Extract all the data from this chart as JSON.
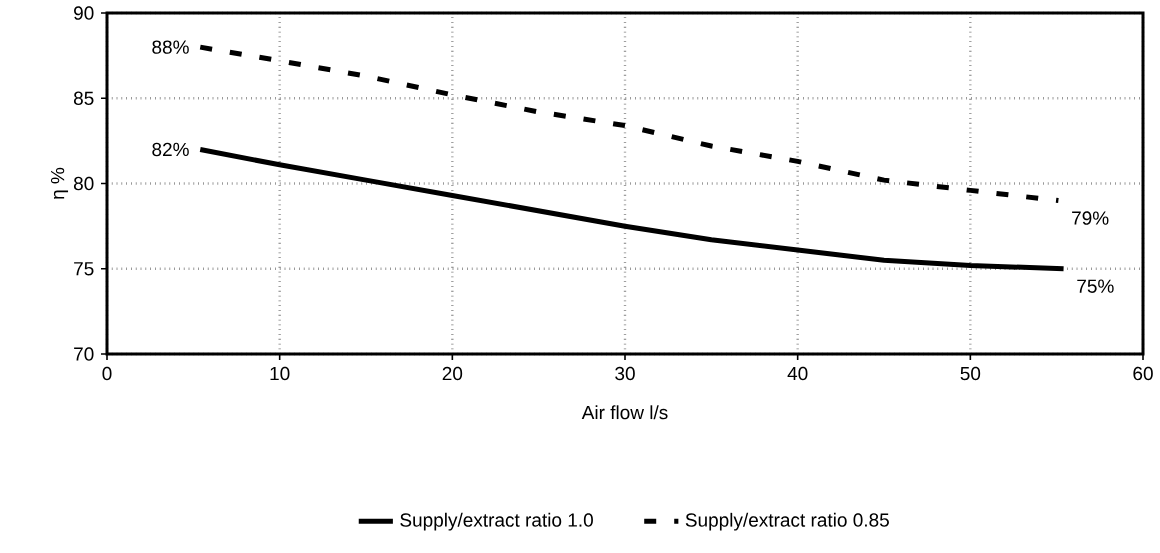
{
  "chart_data": {
    "type": "line",
    "xlabel": "Air flow l/s",
    "ylabel": "η %",
    "xlim": [
      0,
      60
    ],
    "ylim": [
      70,
      90
    ],
    "xticks": [
      0,
      10,
      20,
      30,
      40,
      50,
      60
    ],
    "yticks": [
      70,
      75,
      80,
      85,
      90
    ],
    "grid": true,
    "legend": "bottom",
    "marker": "none",
    "series": [
      {
        "name": "Supply/extract ratio 1.0",
        "color": "#000000",
        "line_style": "solid",
        "x": [
          5.4,
          10,
          15,
          20,
          25,
          30,
          35,
          40,
          45,
          50,
          55.4
        ],
        "values": [
          82,
          81.1,
          80.2,
          79.3,
          78.4,
          77.5,
          76.7,
          76.1,
          75.5,
          75.2,
          75
        ]
      },
      {
        "name": "Supply/extract ratio 0.85",
        "color": "#000000",
        "line_style": "dashed",
        "x": [
          5.4,
          10,
          15,
          20,
          25,
          30,
          35,
          40,
          45,
          50,
          55.1
        ],
        "values": [
          88,
          87.2,
          86.3,
          85.2,
          84.2,
          83.4,
          82.2,
          81.3,
          80.2,
          79.6,
          79
        ]
      }
    ],
    "annotations": [
      {
        "text": "88%",
        "x": 5.4,
        "y": 88
      },
      {
        "text": "82%",
        "x": 5.4,
        "y": 82
      },
      {
        "text": "79%",
        "x": 55.1,
        "y": 79
      },
      {
        "text": "75%",
        "x": 55.4,
        "y": 75
      }
    ]
  }
}
